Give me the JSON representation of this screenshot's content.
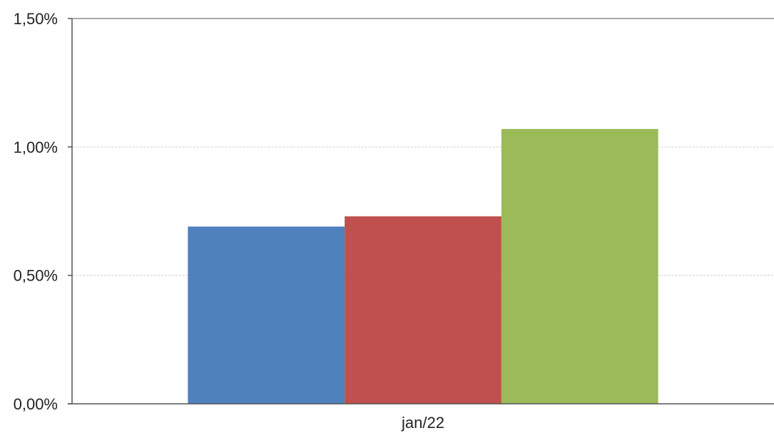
{
  "chart_data": {
    "type": "bar",
    "title": "",
    "xlabel": "",
    "ylabel": "",
    "categories": [
      "jan/22"
    ],
    "series": [
      {
        "values": [
          0.69
        ],
        "color": "#4f81bd"
      },
      {
        "values": [
          0.73
        ],
        "color": "#c0504d"
      },
      {
        "values": [
          1.07
        ],
        "color": "#9bbb59"
      }
    ],
    "ylim": [
      0,
      1.5
    ],
    "yticks": [
      0,
      0.5,
      1.0,
      1.5
    ],
    "ytick_labels": [
      "0,00%",
      "0,50%",
      "1,00%",
      "1,50%"
    ],
    "grid": true,
    "legend": "none"
  }
}
